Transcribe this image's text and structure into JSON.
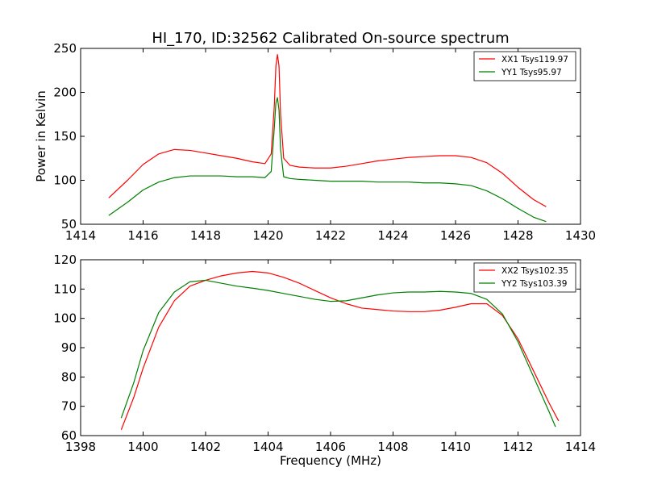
{
  "chart_data": [
    {
      "type": "line",
      "title": "HI_170, ID:32562 Calibrated On-source spectrum",
      "xlabel": "",
      "ylabel": "Power in Kelvin",
      "xlim": [
        1414,
        1430
      ],
      "ylim": [
        50,
        250
      ],
      "xticks": [
        "1414",
        "1416",
        "1418",
        "1420",
        "1422",
        "1424",
        "1426",
        "1428",
        "1430"
      ],
      "yticks": [
        "50",
        "100",
        "150",
        "200",
        "250"
      ],
      "grid": false,
      "legend_position": "top-right",
      "series": [
        {
          "name": "XX1 Tsys119.97",
          "color": "#ff0000",
          "x": [
            1414.9,
            1415.5,
            1416.0,
            1416.5,
            1417.0,
            1417.5,
            1418.0,
            1418.5,
            1419.0,
            1419.5,
            1419.9,
            1420.1,
            1420.2,
            1420.25,
            1420.3,
            1420.35,
            1420.4,
            1420.5,
            1420.7,
            1421.0,
            1421.5,
            1422.0,
            1422.5,
            1423.0,
            1423.5,
            1424.0,
            1424.5,
            1425.0,
            1425.5,
            1426.0,
            1426.5,
            1427.0,
            1427.5,
            1428.0,
            1428.5,
            1428.9
          ],
          "values": [
            80,
            100,
            118,
            130,
            135,
            134,
            131,
            128,
            125,
            121,
            119,
            130,
            185,
            230,
            243,
            230,
            175,
            125,
            117,
            115,
            114,
            114,
            116,
            119,
            122,
            124,
            126,
            127,
            128,
            128,
            126,
            120,
            108,
            92,
            78,
            70
          ]
        },
        {
          "name": "YY1 Tsys95.97",
          "color": "#008000",
          "x": [
            1414.9,
            1415.5,
            1416.0,
            1416.5,
            1417.0,
            1417.5,
            1418.0,
            1418.5,
            1419.0,
            1419.5,
            1419.9,
            1420.1,
            1420.2,
            1420.25,
            1420.3,
            1420.35,
            1420.4,
            1420.5,
            1420.7,
            1421.0,
            1421.5,
            1422.0,
            1422.5,
            1423.0,
            1423.5,
            1424.0,
            1424.5,
            1425.0,
            1425.5,
            1426.0,
            1426.5,
            1427.0,
            1427.5,
            1428.0,
            1428.5,
            1428.9
          ],
          "values": [
            60,
            75,
            89,
            98,
            103,
            105,
            105,
            105,
            104,
            104,
            103,
            110,
            160,
            188,
            194,
            180,
            135,
            104,
            102,
            101,
            100,
            99,
            99,
            99,
            98,
            98,
            98,
            97,
            97,
            96,
            94,
            88,
            79,
            68,
            58,
            53
          ]
        }
      ]
    },
    {
      "type": "line",
      "title": "",
      "xlabel": "Frequency (MHz)",
      "ylabel": "",
      "xlim": [
        1398,
        1414
      ],
      "ylim": [
        60,
        120
      ],
      "xticks": [
        "1398",
        "1400",
        "1402",
        "1404",
        "1406",
        "1408",
        "1410",
        "1412",
        "1414"
      ],
      "yticks": [
        "60",
        "70",
        "80",
        "90",
        "100",
        "110",
        "120"
      ],
      "grid": false,
      "legend_position": "top-right",
      "series": [
        {
          "name": "XX2 Tsys102.35",
          "color": "#ff0000",
          "x": [
            1399.3,
            1399.7,
            1400.0,
            1400.5,
            1401.0,
            1401.5,
            1402.0,
            1402.5,
            1403.0,
            1403.5,
            1404.0,
            1404.5,
            1405.0,
            1405.5,
            1406.0,
            1406.5,
            1407.0,
            1407.5,
            1408.0,
            1408.5,
            1409.0,
            1409.5,
            1410.0,
            1410.5,
            1411.0,
            1411.5,
            1412.0,
            1412.5,
            1413.0,
            1413.3
          ],
          "values": [
            62,
            73,
            83,
            97,
            106,
            111,
            113,
            114.5,
            115.5,
            116,
            115.5,
            114,
            112,
            109.5,
            107,
            105,
            103.5,
            103,
            102.5,
            102.3,
            102.3,
            102.8,
            103.8,
            105,
            105,
            101,
            93,
            82,
            71,
            65
          ]
        },
        {
          "name": "YY2 Tsys103.39",
          "color": "#008000",
          "x": [
            1399.3,
            1399.7,
            1400.0,
            1400.5,
            1401.0,
            1401.5,
            1402.0,
            1402.5,
            1403.0,
            1403.5,
            1404.0,
            1404.5,
            1405.0,
            1405.5,
            1406.0,
            1406.5,
            1407.0,
            1407.5,
            1408.0,
            1408.5,
            1409.0,
            1409.5,
            1410.0,
            1410.5,
            1411.0,
            1411.5,
            1412.0,
            1412.5,
            1413.0,
            1413.2
          ],
          "values": [
            66,
            78,
            89,
            102,
            109,
            112.5,
            113,
            112,
            111,
            110.3,
            109.5,
            108.5,
            107.5,
            106.5,
            105.8,
            106,
            107,
            108,
            108.7,
            109,
            109,
            109.2,
            109,
            108.5,
            106.5,
            101.5,
            92,
            80,
            68,
            63
          ]
        }
      ]
    }
  ]
}
